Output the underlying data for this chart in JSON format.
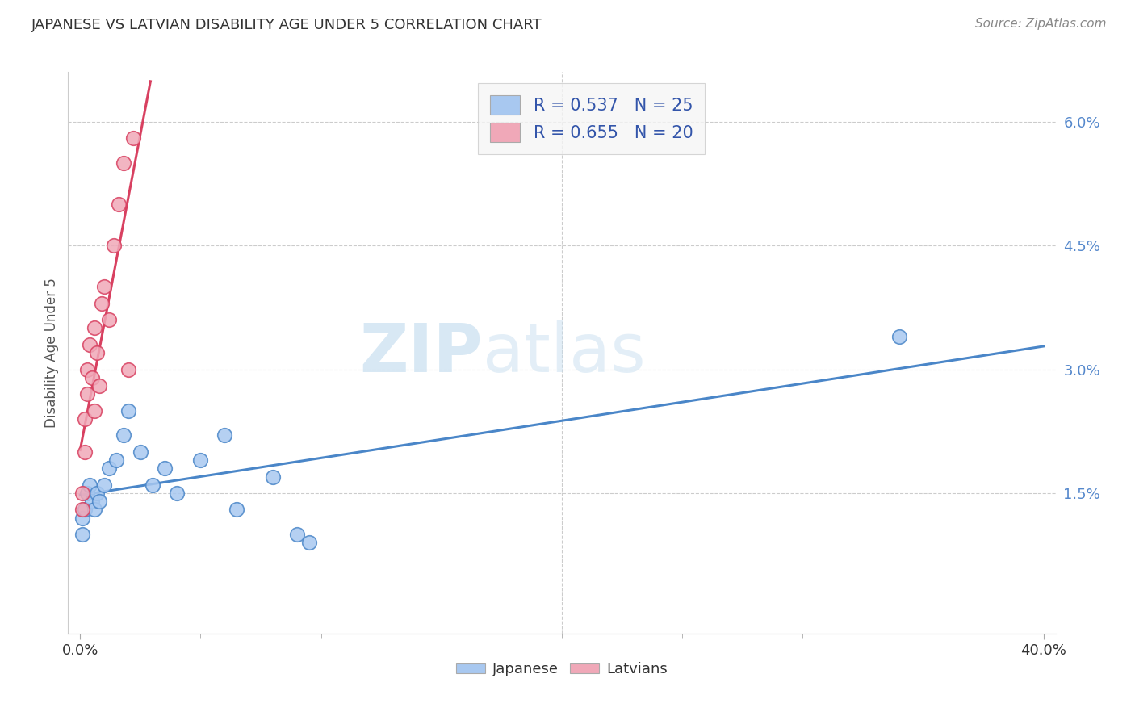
{
  "title": "JAPANESE VS LATVIAN DISABILITY AGE UNDER 5 CORRELATION CHART",
  "source": "Source: ZipAtlas.com",
  "ylabel": "Disability Age Under 5",
  "xlim": [
    -0.005,
    0.405
  ],
  "ylim": [
    -0.002,
    0.066
  ],
  "plot_xlim": [
    0.0,
    0.4
  ],
  "plot_ylim": [
    0.0,
    0.06
  ],
  "xtick_major": [
    0.0,
    0.4
  ],
  "xtick_major_labels": [
    "0.0%",
    "40.0%"
  ],
  "xtick_minor": [
    0.05,
    0.1,
    0.15,
    0.2,
    0.25,
    0.3,
    0.35
  ],
  "yticks": [
    0.0,
    0.015,
    0.03,
    0.045,
    0.06
  ],
  "ytick_labels": [
    "",
    "1.5%",
    "3.0%",
    "4.5%",
    "6.0%"
  ],
  "grid_yticks": [
    0.015,
    0.03,
    0.045,
    0.06
  ],
  "japanese_R": 0.537,
  "japanese_N": 25,
  "latvian_R": 0.655,
  "latvian_N": 20,
  "japanese_color": "#a8c8f0",
  "latvian_color": "#f0a8b8",
  "japanese_line_color": "#4a86c8",
  "latvian_line_color": "#d84060",
  "japanese_points_x": [
    0.001,
    0.001,
    0.002,
    0.003,
    0.004,
    0.005,
    0.006,
    0.007,
    0.008,
    0.01,
    0.012,
    0.015,
    0.018,
    0.02,
    0.025,
    0.03,
    0.035,
    0.04,
    0.05,
    0.06,
    0.065,
    0.08,
    0.09,
    0.095,
    0.34
  ],
  "japanese_points_y": [
    0.012,
    0.01,
    0.013,
    0.015,
    0.016,
    0.014,
    0.013,
    0.015,
    0.014,
    0.016,
    0.018,
    0.019,
    0.022,
    0.025,
    0.02,
    0.016,
    0.018,
    0.015,
    0.019,
    0.022,
    0.013,
    0.017,
    0.01,
    0.009,
    0.034
  ],
  "latvian_points_x": [
    0.001,
    0.001,
    0.002,
    0.002,
    0.003,
    0.003,
    0.004,
    0.005,
    0.006,
    0.006,
    0.007,
    0.008,
    0.009,
    0.01,
    0.012,
    0.014,
    0.016,
    0.018,
    0.02,
    0.022
  ],
  "latvian_points_y": [
    0.013,
    0.015,
    0.02,
    0.024,
    0.027,
    0.03,
    0.033,
    0.029,
    0.035,
    0.025,
    0.032,
    0.028,
    0.038,
    0.04,
    0.036,
    0.045,
    0.05,
    0.055,
    0.03,
    0.058
  ],
  "watermark_zip": "ZIP",
  "watermark_atlas": "atlas",
  "background_color": "#ffffff",
  "grid_color": "#cccccc",
  "legend1_label1": "R = 0.537   N = 25",
  "legend1_label2": "R = 0.655   N = 20",
  "bottom_legend_labels": [
    "Japanese",
    "Latvians"
  ]
}
